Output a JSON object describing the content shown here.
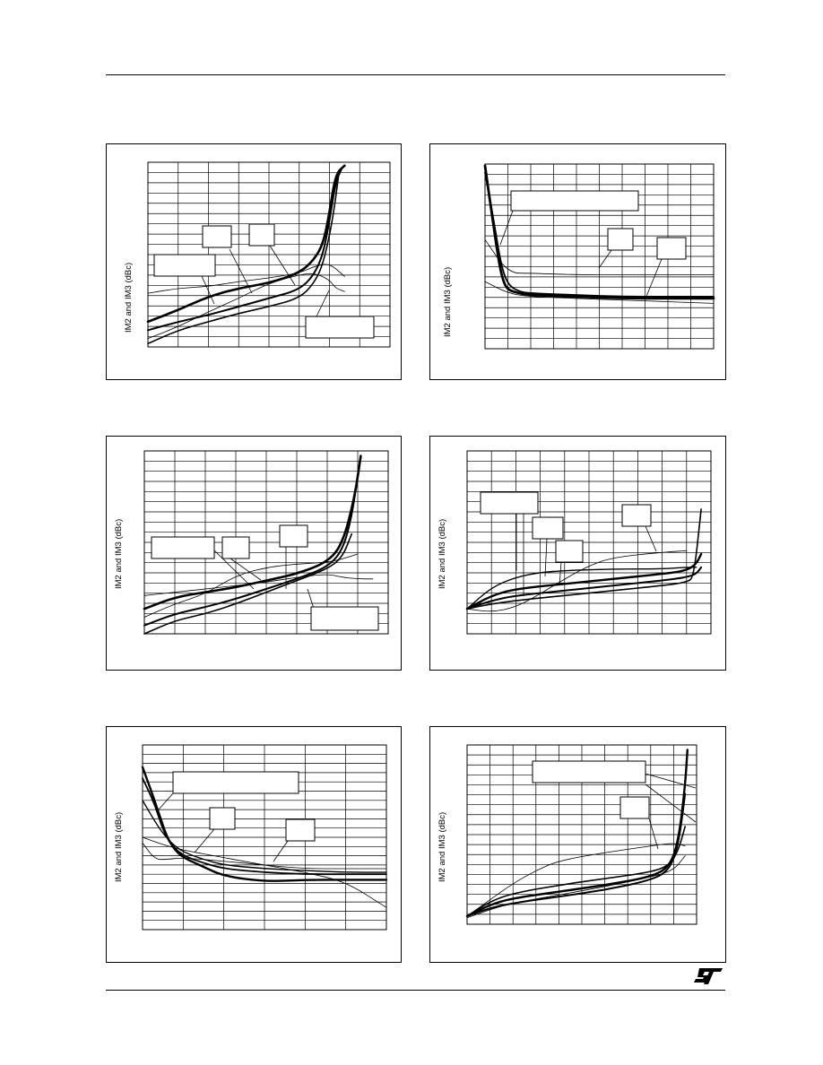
{
  "page": {
    "logo_icon": "st-logo-icon",
    "line_color": "#000000",
    "background": "#ffffff"
  },
  "figures": [
    {
      "id": "fig1",
      "ylabel": "IM2 and IM3 (dBc)"
    },
    {
      "id": "fig2",
      "ylabel": "IM2 and IM3 (dBc)"
    },
    {
      "id": "fig3",
      "ylabel": "IM2 and IM3 (dBc)"
    },
    {
      "id": "fig4",
      "ylabel": "IM2 and IM3 (dBc)"
    },
    {
      "id": "fig5",
      "ylabel": "IM2 and IM3 (dBc)"
    },
    {
      "id": "fig6",
      "ylabel": "IM2 and IM3 (dBc)"
    }
  ],
  "chart_data": [
    {
      "type": "line",
      "ylabel": "IM2 and IM3 (dBc)",
      "xlim": [
        0,
        8
      ],
      "ylim": [
        0,
        11
      ],
      "grid": true,
      "series": [
        {
          "width": 2.6,
          "x": [
            0,
            1,
            2,
            3,
            4,
            5,
            5.5,
            5.8,
            6.0,
            6.2,
            6.5
          ],
          "y": [
            1.5,
            2.2,
            3.0,
            3.5,
            3.8,
            4.4,
            5.2,
            6.2,
            8.0,
            10.3,
            10.8
          ]
        },
        {
          "width": 2.0,
          "x": [
            0,
            1,
            2,
            3,
            4,
            5,
            5.5,
            5.8,
            6.0,
            6.2,
            6.4
          ],
          "y": [
            1.0,
            1.5,
            1.9,
            2.4,
            2.9,
            3.4,
            4.3,
            5.6,
            7.5,
            9.8,
            10.6
          ]
        },
        {
          "width": 1.6,
          "x": [
            0,
            1,
            2,
            3,
            4,
            5,
            5.5,
            5.8,
            6.1,
            6.3
          ],
          "y": [
            0.2,
            1.0,
            1.5,
            2.0,
            2.4,
            2.9,
            3.8,
            5.0,
            7.5,
            10.2
          ]
        },
        {
          "width": 0.8,
          "x": [
            0,
            1,
            2,
            3,
            4,
            5,
            5.5,
            6.0,
            6.5
          ],
          "y": [
            3.2,
            3.5,
            3.6,
            3.9,
            4.1,
            4.4,
            4.8,
            5.0,
            4.2
          ]
        },
        {
          "width": 0.8,
          "x": [
            0,
            1,
            2,
            3,
            4,
            5,
            5.5,
            6.0,
            6.2,
            6.5
          ],
          "y": [
            0.5,
            1.2,
            2.1,
            2.9,
            3.8,
            4.3,
            4.4,
            4.0,
            3.5,
            3.3
          ]
        }
      ]
    },
    {
      "type": "line",
      "ylabel": "IM2 and IM3 (dBc)",
      "xlim": [
        0,
        10
      ],
      "ylim": [
        0,
        11
      ],
      "grid": true,
      "series": [
        {
          "width": 2.8,
          "x": [
            0,
            0.3,
            0.6,
            0.8,
            1.0,
            1.5,
            2,
            4,
            6,
            8,
            10
          ],
          "y": [
            10.9,
            8.0,
            5.2,
            4.0,
            3.5,
            3.3,
            3.2,
            3.1,
            3.0,
            3.0,
            3.0
          ]
        },
        {
          "width": 1.8,
          "x": [
            0,
            0.4,
            0.7,
            1.0,
            1.5,
            2,
            4,
            6,
            8,
            10
          ],
          "y": [
            10.5,
            7.5,
            5.0,
            3.8,
            3.4,
            3.3,
            3.2,
            3.1,
            3.1,
            3.1
          ]
        },
        {
          "width": 0.8,
          "x": [
            0,
            1,
            2,
            4,
            6,
            8,
            10
          ],
          "y": [
            6.5,
            4.5,
            4.5,
            4.4,
            4.4,
            4.4,
            4.4
          ]
        },
        {
          "width": 0.8,
          "x": [
            0,
            1,
            2,
            4,
            6,
            8,
            10
          ],
          "y": [
            4.0,
            3.3,
            3.1,
            3.0,
            2.9,
            2.8,
            2.7
          ]
        }
      ]
    },
    {
      "type": "line",
      "ylabel": "IM2 and IM3 (dBc)",
      "xlim": [
        0,
        8
      ],
      "ylim": [
        0,
        11
      ],
      "grid": true,
      "series": [
        {
          "width": 2.6,
          "x": [
            0,
            1,
            2,
            3,
            4,
            5,
            6.0,
            6.5,
            6.9,
            7.1
          ],
          "y": [
            1.5,
            2.2,
            2.5,
            2.8,
            3.2,
            3.6,
            4.3,
            5.4,
            8.2,
            10.7
          ]
        },
        {
          "width": 2.0,
          "x": [
            0,
            1,
            2,
            3,
            4,
            5,
            6.0,
            6.5,
            6.8,
            7.0
          ],
          "y": [
            0.5,
            1.2,
            1.6,
            2.1,
            2.7,
            3.3,
            4.0,
            5.0,
            7.0,
            9.5
          ]
        },
        {
          "width": 1.6,
          "x": [
            0,
            1,
            2,
            3,
            4,
            5,
            6.0,
            6.5,
            6.8
          ],
          "y": [
            0.0,
            0.8,
            1.2,
            1.8,
            2.5,
            3.2,
            3.9,
            4.6,
            6.0
          ]
        },
        {
          "width": 0.8,
          "x": [
            0,
            1,
            2,
            3,
            4,
            5,
            6.0,
            6.5,
            7.0
          ],
          "y": [
            1.0,
            1.8,
            2.4,
            3.5,
            4.0,
            4.2,
            4.3,
            4.5,
            4.8
          ]
        },
        {
          "width": 0.8,
          "x": [
            0,
            1,
            2,
            3,
            4,
            5,
            6.0,
            6.5,
            7.0,
            7.5
          ],
          "y": [
            2.3,
            2.5,
            2.7,
            2.9,
            3.1,
            3.4,
            3.6,
            3.4,
            3.3,
            3.3
          ]
        }
      ]
    },
    {
      "type": "line",
      "ylabel": "IM2 and IM3 (dBc)",
      "xlim": [
        0,
        10
      ],
      "ylim": [
        0,
        11
      ],
      "grid": true,
      "series": [
        {
          "width": 2.4,
          "x": [
            0,
            1,
            2,
            4,
            6,
            8,
            9.0,
            9.4,
            9.6
          ],
          "y": [
            1.5,
            2.3,
            2.7,
            3.0,
            3.3,
            3.6,
            3.8,
            4.2,
            4.8
          ]
        },
        {
          "width": 2.0,
          "x": [
            0,
            1,
            2,
            4,
            6,
            8,
            9.0,
            9.4,
            9.6
          ],
          "y": [
            1.5,
            2.0,
            2.3,
            2.6,
            2.9,
            3.2,
            3.4,
            3.6,
            4.0
          ]
        },
        {
          "width": 1.6,
          "x": [
            0,
            1,
            2,
            4,
            6,
            8,
            9.0,
            9.3,
            9.6
          ],
          "y": [
            1.5,
            1.8,
            2.0,
            2.3,
            2.6,
            2.9,
            3.1,
            3.4,
            7.5
          ]
        },
        {
          "width": 1.4,
          "x": [
            0,
            1,
            2,
            3,
            4,
            6,
            8,
            9.0,
            9.4
          ],
          "y": [
            1.5,
            2.8,
            3.4,
            3.7,
            3.8,
            3.9,
            3.9,
            4.0,
            4.0
          ]
        },
        {
          "width": 0.8,
          "x": [
            0,
            1,
            2,
            3,
            4,
            5,
            6,
            8,
            9.0
          ],
          "y": [
            1.5,
            1.3,
            1.6,
            2.4,
            3.3,
            4.1,
            4.6,
            4.9,
            5.0
          ]
        }
      ]
    },
    {
      "type": "line",
      "ylabel": "IM2 and IM3 (dBc)",
      "xlim": [
        0,
        6
      ],
      "ylim": [
        0,
        10
      ],
      "grid": true,
      "series": [
        {
          "width": 2.4,
          "x": [
            0,
            0.2,
            0.4,
            0.6,
            0.8,
            1.0,
            1.5,
            2,
            3,
            4,
            5,
            6
          ],
          "y": [
            8.8,
            7.6,
            6.3,
            5.0,
            4.3,
            3.9,
            3.4,
            2.9,
            2.6,
            2.7,
            2.7,
            2.7
          ]
        },
        {
          "width": 1.8,
          "x": [
            0,
            0.3,
            0.5,
            0.7,
            1.0,
            1.5,
            2,
            3,
            4,
            5,
            6
          ],
          "y": [
            8.2,
            6.8,
            5.4,
            4.6,
            4.0,
            3.6,
            3.3,
            3.1,
            3.0,
            3.0,
            3.0
          ]
        },
        {
          "width": 1.4,
          "x": [
            0,
            0.4,
            0.7,
            1.0,
            1.5,
            2,
            3,
            4,
            5,
            6
          ],
          "y": [
            7.0,
            5.5,
            4.7,
            4.2,
            3.8,
            3.5,
            3.3,
            3.2,
            3.1,
            3.1
          ]
        },
        {
          "width": 0.8,
          "x": [
            0,
            0.5,
            1.0,
            2,
            3,
            4,
            5,
            6
          ],
          "y": [
            5.0,
            4.6,
            4.3,
            3.9,
            3.5,
            3.1,
            2.6,
            1.2
          ]
        },
        {
          "width": 0.8,
          "x": [
            0,
            0.3,
            0.6,
            1.0,
            2,
            3,
            4,
            5,
            6
          ],
          "y": [
            4.7,
            3.8,
            3.8,
            3.9,
            3.7,
            3.5,
            3.3,
            3.3,
            3.3
          ]
        }
      ]
    },
    {
      "type": "line",
      "ylabel": "IM2 and IM3 (dBc)",
      "xlim": [
        0,
        10
      ],
      "ylim": [
        0,
        11
      ],
      "grid": true,
      "series": [
        {
          "width": 2.4,
          "x": [
            0,
            1,
            2,
            4,
            6,
            8,
            8.8,
            9.2,
            9.5,
            9.6
          ],
          "y": [
            0.5,
            1.2,
            1.6,
            2.0,
            2.4,
            2.9,
            3.5,
            5.0,
            8.5,
            10.7
          ]
        },
        {
          "width": 2.0,
          "x": [
            0,
            1,
            2,
            4,
            6,
            8,
            8.8,
            9.2,
            9.5
          ],
          "y": [
            0.5,
            1.0,
            1.3,
            1.7,
            2.1,
            2.7,
            3.3,
            4.8,
            8.0
          ]
        },
        {
          "width": 1.6,
          "x": [
            0,
            1,
            2,
            4,
            6,
            8,
            8.8,
            9.2,
            9.5
          ],
          "y": [
            0.5,
            1.4,
            1.9,
            2.4,
            2.8,
            3.2,
            3.6,
            4.5,
            6.0
          ]
        },
        {
          "width": 0.8,
          "x": [
            0,
            1,
            2,
            3,
            4,
            6,
            8,
            9.0,
            9.5
          ],
          "y": [
            0.5,
            1.5,
            2.5,
            3.3,
            3.9,
            4.4,
            4.8,
            5.0,
            4.8
          ]
        },
        {
          "width": 0.8,
          "x": [
            0,
            1,
            2,
            4,
            6,
            8,
            9.0,
            9.5
          ],
          "y": [
            0.4,
            0.9,
            1.3,
            1.8,
            2.3,
            2.9,
            3.3,
            4.2
          ]
        }
      ]
    }
  ]
}
